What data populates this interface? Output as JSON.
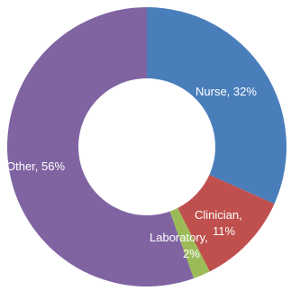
{
  "chart_data": {
    "type": "pie",
    "variant": "donut",
    "legend": "none",
    "slices": [
      {
        "name": "Nurse",
        "value": 32,
        "label": "Nurse, 32%",
        "color": "#4A7EBB"
      },
      {
        "name": "Clinician",
        "value": 11,
        "label": "Clinician,",
        "label2": "11%",
        "color": "#C0504D"
      },
      {
        "name": "Laboratory",
        "value": 2,
        "label": "Laboratory,",
        "label2": "2%",
        "color": "#9BBB59"
      },
      {
        "name": "Other",
        "value": 56,
        "label": "Other, 56%",
        "color": "#8064A2"
      }
    ]
  }
}
